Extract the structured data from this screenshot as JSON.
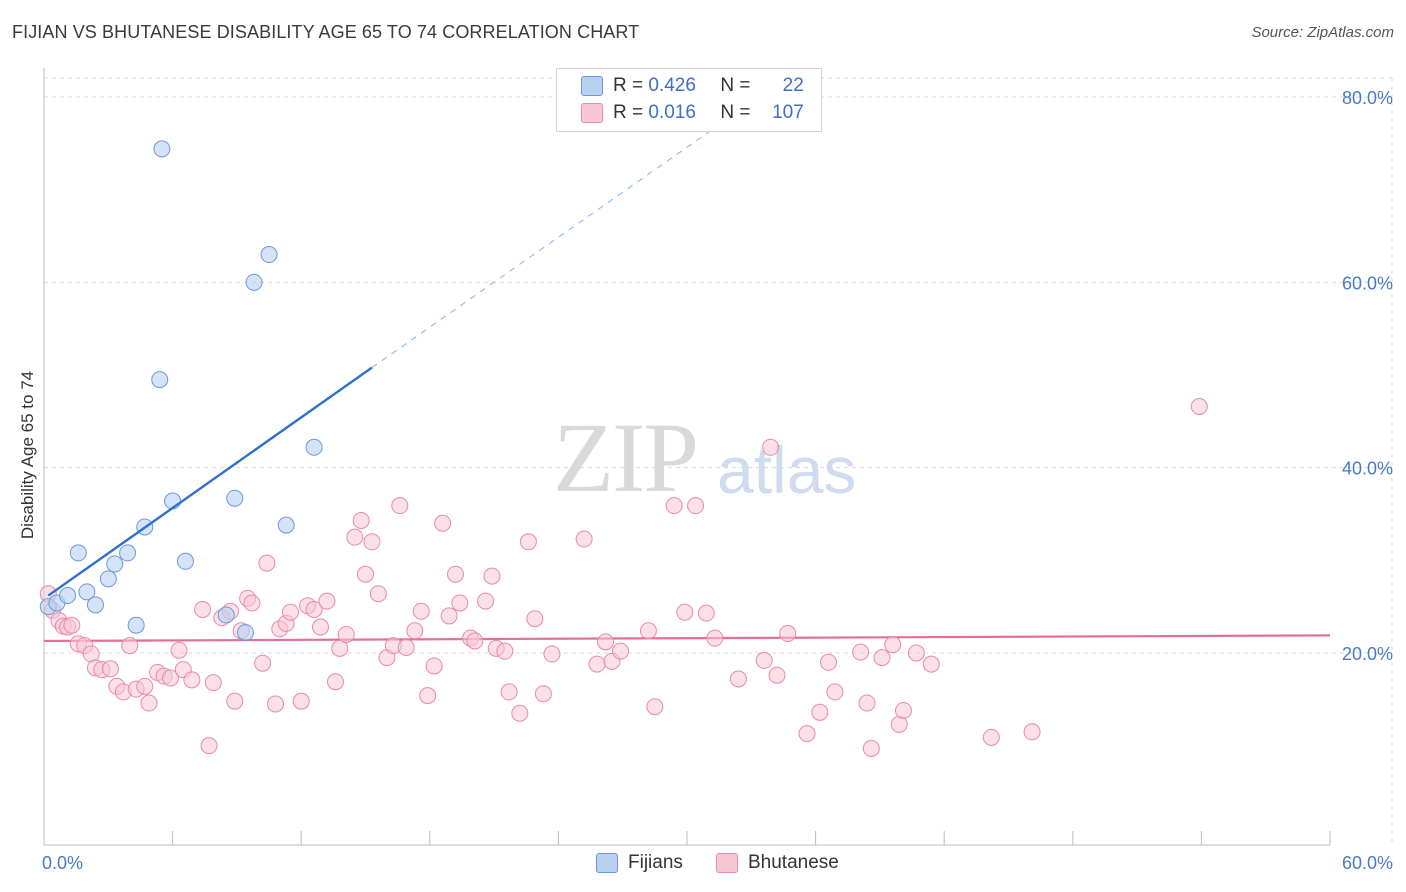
{
  "header": {
    "title": "FIJIAN VS BHUTANESE DISABILITY AGE 65 TO 74 CORRELATION CHART",
    "source": "Source: ZipAtlas.com"
  },
  "watermark": {
    "part1": "ZIP",
    "part2": "atlas"
  },
  "colors": {
    "fijians_fill": "#b8d0f2",
    "fijians_stroke": "#6c98d8",
    "fijians_line": "#2f6fce",
    "bhutanese_fill": "#f7c6d5",
    "bhutanese_stroke": "#e88aa8",
    "bhutanese_line": "#e46e97",
    "grid": "#d9d9d9",
    "tick_text": "#4a79c8"
  },
  "legend": {
    "fijians": {
      "r_label": "R =",
      "r_value": "0.426",
      "n_label": "N =",
      "n_value": "22"
    },
    "bhutanese": {
      "r_label": "R =",
      "r_value": "0.016",
      "n_label": "N =",
      "n_value": "107"
    }
  },
  "bottom_legend": {
    "fijians": "Fijians",
    "bhutanese": "Bhutanese"
  },
  "chart_data": {
    "type": "scatter",
    "title": "FIJIAN VS BHUTANESE DISABILITY AGE 65 TO 74 CORRELATION CHART",
    "xlabel": "",
    "ylabel": "Disability Age 65 to 74",
    "xlim": [
      0,
      60
    ],
    "ylim": [
      0,
      82
    ],
    "x_tick_labels": [
      "0.0%",
      "60.0%"
    ],
    "y_ticks": [
      20,
      40,
      60,
      80
    ],
    "y_tick_labels": [
      "20.0%",
      "40.0%",
      "60.0%",
      "80.0%"
    ],
    "grid": true,
    "series": [
      {
        "name": "Fijians",
        "points": [
          [
            0.2,
            25.0
          ],
          [
            0.6,
            25.4
          ],
          [
            1.1,
            26.2
          ],
          [
            1.6,
            30.8
          ],
          [
            2.0,
            26.6
          ],
          [
            2.4,
            25.2
          ],
          [
            3.0,
            28.0
          ],
          [
            3.3,
            29.6
          ],
          [
            3.9,
            30.8
          ],
          [
            4.3,
            23.0
          ],
          [
            4.7,
            33.6
          ],
          [
            5.4,
            49.5
          ],
          [
            5.5,
            74.4
          ],
          [
            6.0,
            36.4
          ],
          [
            6.6,
            29.9
          ],
          [
            8.5,
            24.1
          ],
          [
            8.9,
            36.7
          ],
          [
            9.4,
            22.2
          ],
          [
            9.8,
            60.0
          ],
          [
            10.5,
            63.0
          ],
          [
            11.3,
            33.8
          ],
          [
            12.6,
            42.2
          ]
        ],
        "trend": {
          "x0": 0.2,
          "y0": 26.2,
          "x1": 15.3,
          "y1": 50.8,
          "dash_to_x": 31.5,
          "dash_to_y": 77.0
        }
      },
      {
        "name": "Bhutanese",
        "points": [
          [
            0.2,
            26.4
          ],
          [
            0.4,
            24.6
          ],
          [
            0.7,
            23.5
          ],
          [
            0.9,
            22.9
          ],
          [
            1.1,
            22.8
          ],
          [
            1.3,
            23.0
          ],
          [
            1.6,
            21.0
          ],
          [
            1.9,
            20.8
          ],
          [
            2.2,
            19.9
          ],
          [
            2.4,
            18.4
          ],
          [
            2.7,
            18.2
          ],
          [
            3.1,
            18.3
          ],
          [
            3.4,
            16.4
          ],
          [
            3.7,
            15.8
          ],
          [
            4.0,
            20.8
          ],
          [
            4.3,
            16.1
          ],
          [
            4.7,
            16.4
          ],
          [
            4.9,
            14.6
          ],
          [
            5.3,
            17.9
          ],
          [
            5.6,
            17.5
          ],
          [
            5.9,
            17.3
          ],
          [
            6.3,
            20.3
          ],
          [
            6.5,
            18.2
          ],
          [
            6.9,
            17.1
          ],
          [
            7.4,
            24.7
          ],
          [
            7.7,
            10.0
          ],
          [
            7.9,
            16.8
          ],
          [
            8.3,
            23.8
          ],
          [
            8.7,
            24.5
          ],
          [
            8.9,
            14.8
          ],
          [
            9.2,
            22.4
          ],
          [
            9.5,
            25.9
          ],
          [
            9.7,
            25.4
          ],
          [
            10.2,
            18.9
          ],
          [
            10.4,
            29.7
          ],
          [
            10.8,
            14.5
          ],
          [
            11.0,
            22.6
          ],
          [
            11.3,
            23.2
          ],
          [
            11.5,
            24.4
          ],
          [
            12.0,
            14.8
          ],
          [
            12.3,
            25.1
          ],
          [
            12.6,
            24.7
          ],
          [
            12.9,
            22.8
          ],
          [
            13.2,
            25.6
          ],
          [
            13.6,
            16.9
          ],
          [
            13.8,
            20.5
          ],
          [
            14.1,
            22.0
          ],
          [
            14.5,
            32.5
          ],
          [
            14.8,
            34.3
          ],
          [
            15.0,
            28.5
          ],
          [
            15.3,
            32.0
          ],
          [
            15.6,
            26.4
          ],
          [
            16.0,
            19.5
          ],
          [
            16.3,
            20.8
          ],
          [
            16.6,
            35.9
          ],
          [
            16.9,
            20.6
          ],
          [
            17.3,
            22.4
          ],
          [
            17.6,
            24.5
          ],
          [
            17.9,
            15.4
          ],
          [
            18.2,
            18.6
          ],
          [
            18.6,
            34.0
          ],
          [
            18.9,
            24.0
          ],
          [
            19.2,
            28.5
          ],
          [
            19.4,
            25.4
          ],
          [
            19.9,
            21.6
          ],
          [
            20.1,
            21.3
          ],
          [
            20.6,
            25.6
          ],
          [
            20.9,
            28.3
          ],
          [
            21.1,
            20.5
          ],
          [
            21.5,
            20.2
          ],
          [
            21.7,
            15.8
          ],
          [
            22.2,
            13.5
          ],
          [
            22.6,
            32.0
          ],
          [
            22.9,
            23.7
          ],
          [
            23.3,
            15.6
          ],
          [
            23.7,
            19.9
          ],
          [
            25.2,
            32.3
          ],
          [
            25.8,
            18.8
          ],
          [
            26.2,
            21.2
          ],
          [
            26.5,
            19.1
          ],
          [
            26.9,
            20.2
          ],
          [
            28.2,
            22.4
          ],
          [
            28.5,
            14.2
          ],
          [
            29.4,
            35.9
          ],
          [
            29.9,
            24.4
          ],
          [
            30.4,
            35.9
          ],
          [
            30.9,
            24.3
          ],
          [
            31.3,
            21.6
          ],
          [
            32.4,
            17.2
          ],
          [
            33.6,
            19.2
          ],
          [
            33.9,
            42.2
          ],
          [
            34.2,
            17.6
          ],
          [
            34.7,
            22.1
          ],
          [
            35.6,
            11.3
          ],
          [
            36.2,
            13.6
          ],
          [
            36.6,
            19.0
          ],
          [
            36.9,
            15.8
          ],
          [
            38.1,
            20.1
          ],
          [
            38.4,
            14.6
          ],
          [
            38.6,
            9.7
          ],
          [
            39.1,
            19.5
          ],
          [
            39.6,
            20.9
          ],
          [
            39.9,
            12.3
          ],
          [
            40.1,
            13.8
          ],
          [
            40.7,
            20.0
          ],
          [
            41.4,
            18.8
          ],
          [
            44.2,
            10.9
          ],
          [
            46.1,
            11.5
          ],
          [
            53.9,
            46.6
          ]
        ],
        "trend": {
          "x0": 0.0,
          "y0": 21.3,
          "x1": 60.0,
          "y1": 21.9
        }
      }
    ]
  }
}
